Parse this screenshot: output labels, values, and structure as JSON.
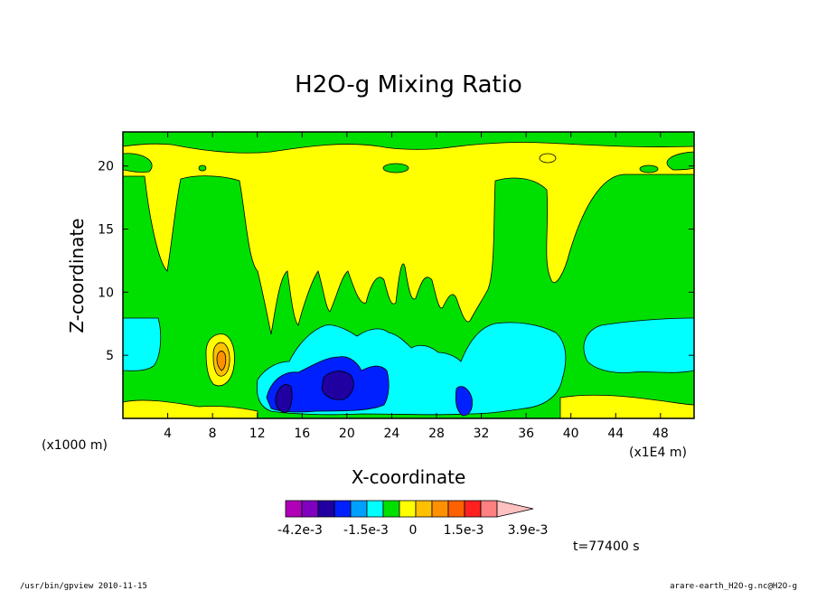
{
  "chart_data": {
    "type": "heatmap",
    "title": "H2O-g Mixing Ratio",
    "xlabel": "X-coordinate",
    "ylabel": "Z-coordinate",
    "x_unit_left": "(x1000 m)",
    "x_unit_right": "(x1E4 m)",
    "x_ticks": [
      "4",
      "8",
      "12",
      "16",
      "20",
      "24",
      "28",
      "32",
      "36",
      "40",
      "44",
      "48"
    ],
    "y_ticks": [
      "5",
      "10",
      "15",
      "20"
    ],
    "xlim": [
      0,
      51
    ],
    "ylim": [
      0,
      22.7
    ],
    "time_label": "t=77400 s",
    "colorbar": {
      "colors": [
        "#b000b8",
        "#8000c0",
        "#2000a0",
        "#0020ff",
        "#00a0ff",
        "#00ffff",
        "#00e000",
        "#ffff00",
        "#ffc000",
        "#ff9000",
        "#ff6000",
        "#ff2020",
        "#ff8080",
        "#ffc0c0"
      ],
      "labels": [
        "-4.2e-3",
        "-1.5e-3",
        "0",
        "1.5e-3",
        "3.9e-3"
      ],
      "extend": "max"
    }
  },
  "footer": {
    "left": "/usr/bin/gpview  2010-11-15",
    "right": "arare-earth_H2O-g.nc@H2O-g"
  }
}
